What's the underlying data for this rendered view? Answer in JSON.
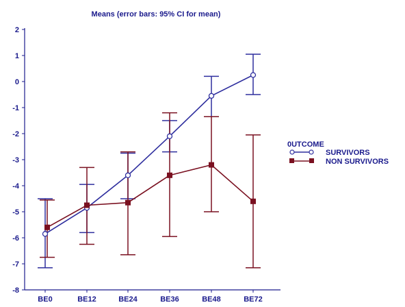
{
  "chart_data": {
    "type": "line",
    "title": "Means  (error bars: 95% CI for mean)",
    "categories": [
      "BE0",
      "BE12",
      "BE24",
      "BE36",
      "BE48",
      "BE72"
    ],
    "ylim": [
      -8,
      2
    ],
    "yticks": [
      "2",
      "1",
      "0",
      "-1",
      "-2",
      "-3",
      "-4",
      "-5",
      "-6",
      "-7",
      "-8"
    ],
    "ytick_values": [
      2,
      1,
      0,
      -1,
      -2,
      -3,
      -4,
      -5,
      -6,
      -7,
      -8
    ],
    "legend": {
      "title": "0UTCOME",
      "placement": "right"
    },
    "series": [
      {
        "name": "SURVIVORS",
        "color": "#2e2e9e",
        "marker": "open-circle",
        "values": [
          -5.85,
          -4.85,
          -3.6,
          -2.1,
          -0.55,
          0.25
        ],
        "ci_low": [
          -7.15,
          -5.8,
          -4.5,
          -2.7,
          -1.35,
          -0.5
        ],
        "ci_high": [
          -4.5,
          -3.95,
          -2.75,
          -1.5,
          0.2,
          1.05
        ]
      },
      {
        "name": "NON SURVIVORS",
        "color": "#7a1020",
        "marker": "filled-square",
        "values": [
          -5.6,
          -4.75,
          -4.65,
          -3.6,
          -3.2,
          -4.6
        ],
        "ci_low": [
          -6.75,
          -6.25,
          -6.65,
          -5.95,
          -5.0,
          -7.15
        ],
        "ci_high": [
          -4.55,
          -3.3,
          -2.7,
          -1.2,
          -1.35,
          -2.05
        ]
      }
    ]
  }
}
